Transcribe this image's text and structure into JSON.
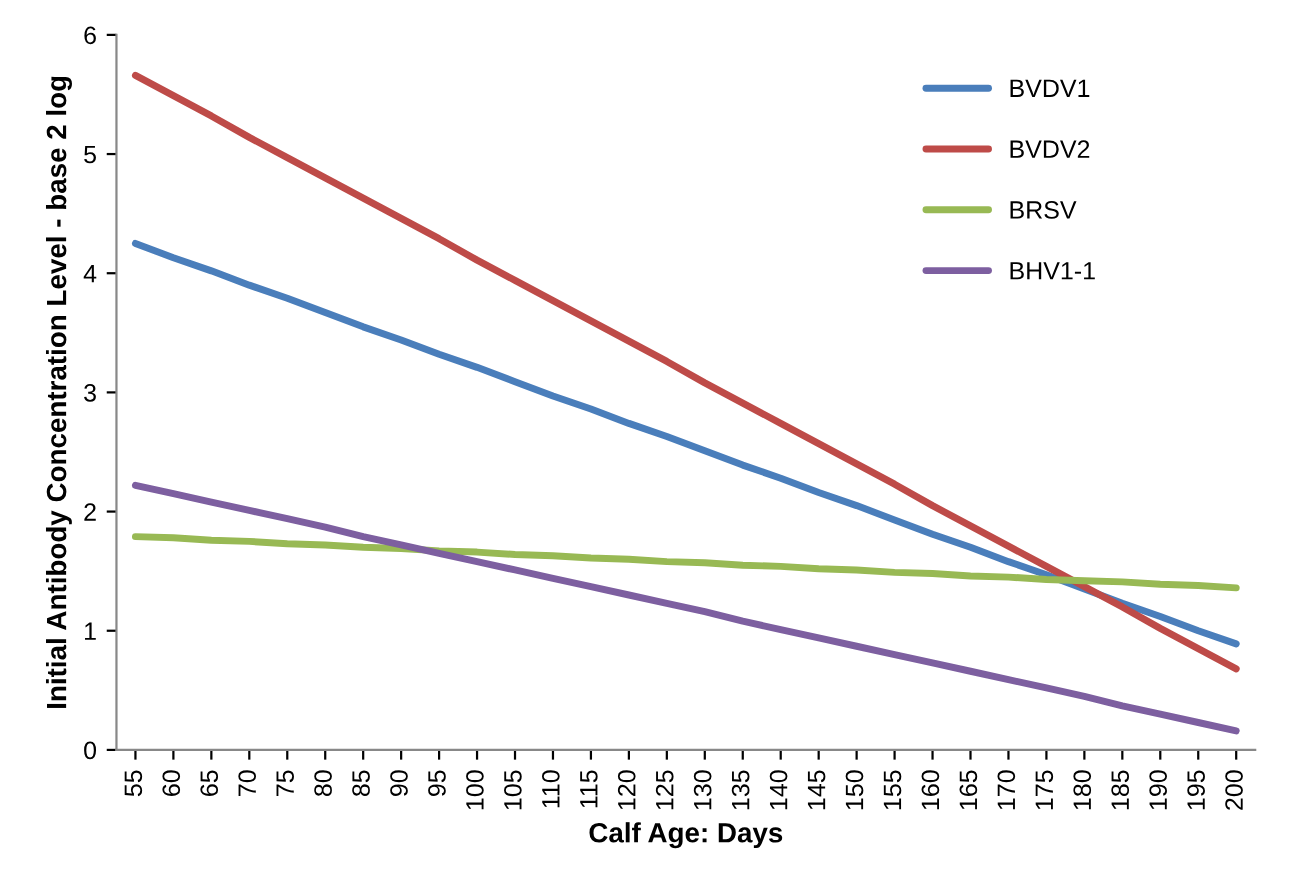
{
  "chart_data": {
    "type": "line",
    "xlabel": "Calf Age: Days",
    "ylabel": "Initial Antibody Concentration Level - base 2 log",
    "categories": [
      "55",
      "60",
      "65",
      "70",
      "75",
      "80",
      "85",
      "90",
      "95",
      "100",
      "105",
      "110",
      "115",
      "120",
      "125",
      "130",
      "135",
      "140",
      "145",
      "150",
      "155",
      "160",
      "165",
      "170",
      "175",
      "180",
      "185",
      "190",
      "195",
      "200"
    ],
    "series": [
      {
        "name": "BVDV1",
        "color": "#4a7ebb",
        "values": [
          4.25,
          4.13,
          4.02,
          3.9,
          3.79,
          3.67,
          3.55,
          3.44,
          3.32,
          3.21,
          3.09,
          2.97,
          2.86,
          2.74,
          2.63,
          2.51,
          2.39,
          2.28,
          2.16,
          2.05,
          1.93,
          1.81,
          1.7,
          1.58,
          1.47,
          1.35,
          1.23,
          1.12,
          1.0,
          0.89
        ]
      },
      {
        "name": "BVDV2",
        "color": "#be4b48",
        "values": [
          5.66,
          5.49,
          5.32,
          5.14,
          4.97,
          4.8,
          4.63,
          4.46,
          4.29,
          4.11,
          3.94,
          3.77,
          3.6,
          3.43,
          3.26,
          3.08,
          2.91,
          2.74,
          2.57,
          2.4,
          2.23,
          2.05,
          1.88,
          1.71,
          1.54,
          1.37,
          1.2,
          1.02,
          0.85,
          0.68
        ]
      },
      {
        "name": "BRSV",
        "color": "#98b954",
        "values": [
          1.79,
          1.78,
          1.76,
          1.75,
          1.73,
          1.72,
          1.7,
          1.69,
          1.67,
          1.66,
          1.64,
          1.63,
          1.61,
          1.6,
          1.58,
          1.57,
          1.55,
          1.54,
          1.52,
          1.51,
          1.49,
          1.48,
          1.46,
          1.45,
          1.43,
          1.42,
          1.41,
          1.39,
          1.38,
          1.36
        ]
      },
      {
        "name": "BHV1-1",
        "color": "#7d5fa0",
        "values": [
          2.22,
          2.15,
          2.08,
          2.01,
          1.94,
          1.87,
          1.79,
          1.72,
          1.65,
          1.58,
          1.51,
          1.44,
          1.37,
          1.3,
          1.23,
          1.16,
          1.08,
          1.01,
          0.94,
          0.87,
          0.8,
          0.73,
          0.66,
          0.59,
          0.52,
          0.45,
          0.37,
          0.3,
          0.23,
          0.16
        ]
      }
    ],
    "ylim": [
      0,
      6
    ],
    "yticks": [
      0,
      1,
      2,
      3,
      4,
      5,
      6
    ],
    "legend": "top right",
    "grid": false,
    "marker": "none",
    "line_style": "solid"
  }
}
